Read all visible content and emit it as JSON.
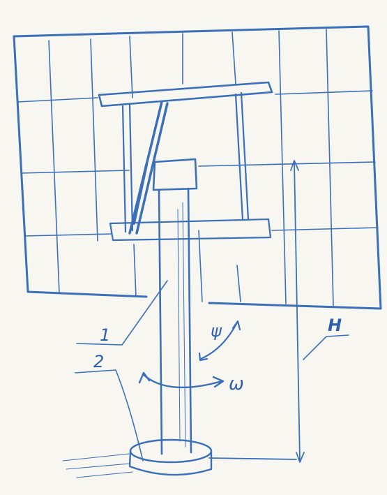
{
  "labels": {
    "part_1": "1",
    "part_2": "2",
    "height": "H",
    "tilt_angle": "ψ",
    "rotation": "ω"
  },
  "colors": {
    "pencil": "#3b6fb8",
    "pencil_light": "#7fa3d6",
    "paper": "#f7f6f1"
  },
  "panel_grid": {
    "columns": 7,
    "rows": 4
  }
}
